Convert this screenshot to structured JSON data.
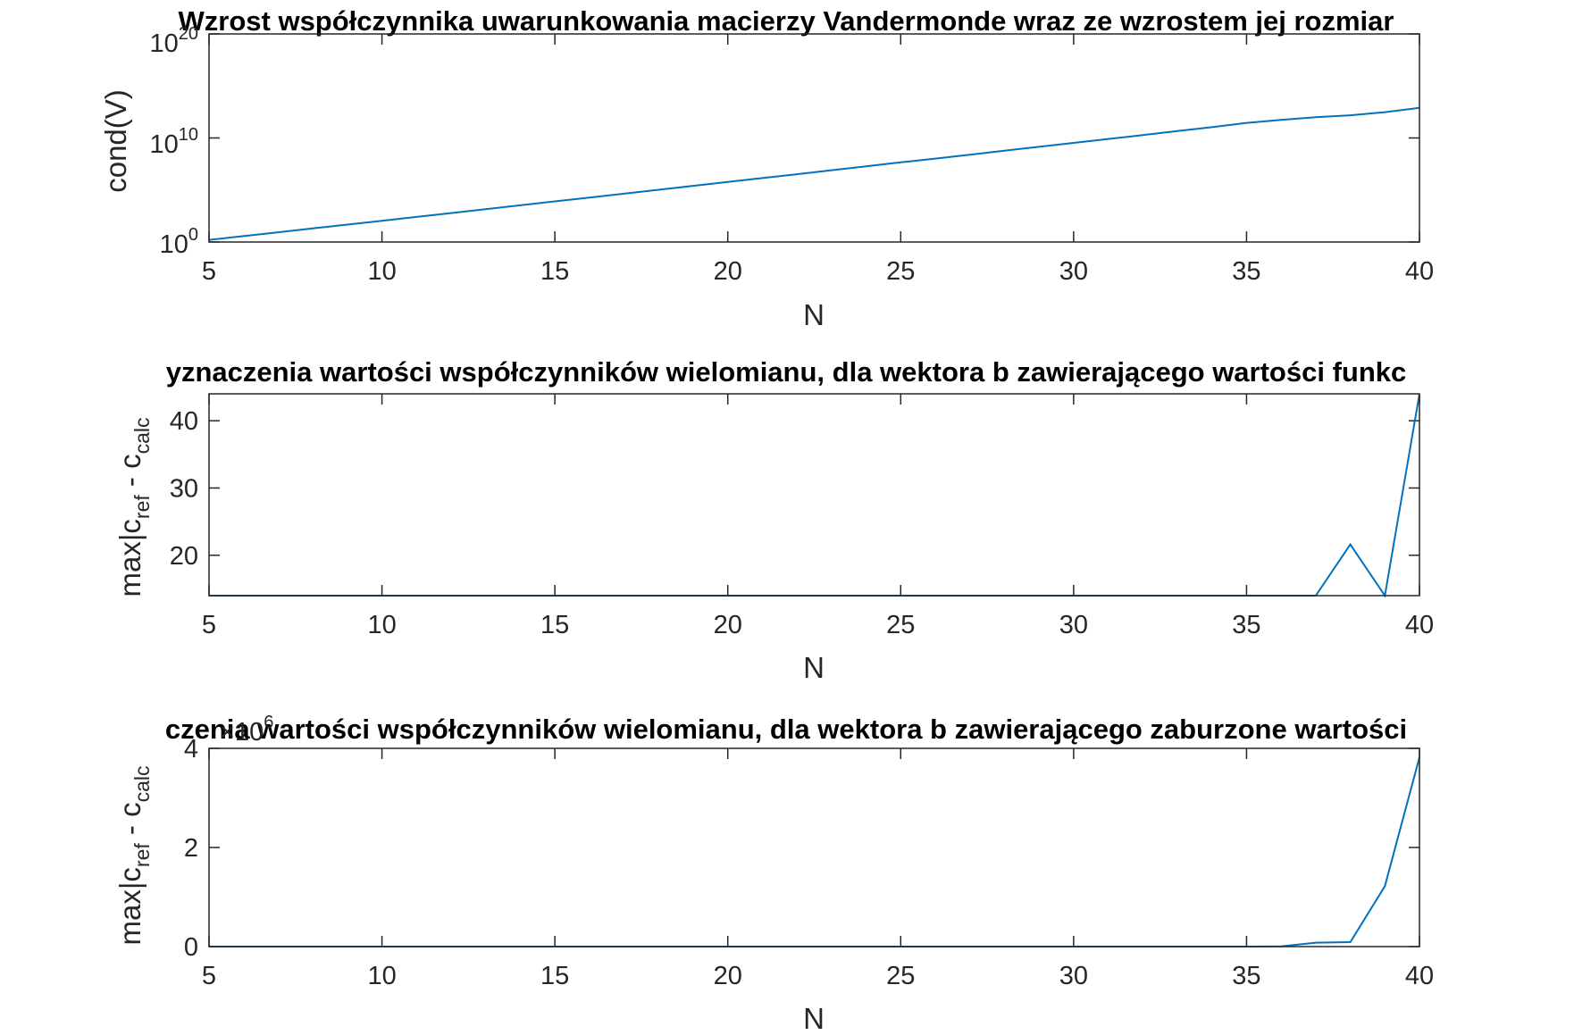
{
  "chart_data": [
    {
      "type": "line",
      "title": "Wzrost współczynnika uwarunkowania macierzy Vandermonde wraz ze wzrostem jej rozmiar",
      "xlabel": "N",
      "ylabel": "cond(V)",
      "yscale": "log",
      "xlim": [
        5,
        40
      ],
      "ylim": [
        1,
        1e+20
      ],
      "xticks": [
        "5",
        "10",
        "15",
        "20",
        "25",
        "30",
        "35",
        "40"
      ],
      "yticks": [
        {
          "base": "10",
          "exp": "0"
        },
        {
          "base": "10",
          "exp": "10"
        },
        {
          "base": "10",
          "exp": "20"
        }
      ],
      "color": "#0072bd",
      "x": [
        5,
        6,
        7,
        8,
        9,
        10,
        11,
        12,
        13,
        14,
        15,
        16,
        17,
        18,
        19,
        20,
        21,
        22,
        23,
        24,
        25,
        26,
        27,
        28,
        29,
        30,
        31,
        32,
        33,
        34,
        35,
        36,
        37,
        38,
        39,
        40
      ],
      "y": [
        1.6,
        3.7,
        8.7,
        20,
        47,
        110,
        260,
        610,
        1450,
        3400,
        8000,
        19000,
        44000,
        105000,
        250000,
        590000,
        1400000,
        3300000,
        7900000,
        19000000,
        45000000,
        105000000,
        250000000,
        600000000,
        1400000000,
        3400000000,
        8000000000,
        19000000000,
        46000000000,
        110000000000,
        280000000000,
        550000000000,
        1000000000000,
        1500000000000,
        3000000000000,
        8000000000000
      ]
    },
    {
      "type": "line",
      "title": "yznaczenia wartości współczynników wielomianu, dla wektora b zawierającego wartości funkc",
      "xlabel": "N",
      "ylabel": {
        "base": "max|c",
        "sub1": "ref",
        "mid": " - c",
        "sub2": "calc"
      },
      "xlim": [
        5,
        40
      ],
      "ylim": [
        14,
        44
      ],
      "xticks": [
        "5",
        "10",
        "15",
        "20",
        "25",
        "30",
        "35",
        "40"
      ],
      "yticks": [
        "20",
        "30",
        "40"
      ],
      "color": "#0072bd",
      "x": [
        5,
        6,
        7,
        8,
        9,
        10,
        11,
        12,
        13,
        14,
        15,
        16,
        17,
        18,
        19,
        20,
        21,
        22,
        23,
        24,
        25,
        26,
        27,
        28,
        29,
        30,
        31,
        32,
        33,
        34,
        35,
        36,
        37,
        38,
        39,
        40
      ],
      "y": [
        14,
        14,
        14,
        14,
        14,
        14,
        14,
        14,
        14,
        14,
        14,
        14,
        14,
        14,
        14,
        14,
        14,
        14,
        14,
        14,
        14,
        14,
        14,
        14,
        14,
        14,
        14,
        14,
        14,
        14,
        14,
        14,
        14,
        21.6,
        14,
        44
      ]
    },
    {
      "type": "line",
      "title": "czenia wartości współczynników wielomianu, dla wektora b zawierającego zaburzone wartości",
      "xlabel": "N",
      "ylabel": {
        "base": "max|c",
        "sub1": "ref",
        "mid": " - c",
        "sub2": "calc"
      },
      "multiplier": {
        "base": "×10",
        "exp": "6"
      },
      "xlim": [
        5,
        40
      ],
      "ylim": [
        0,
        4
      ],
      "xticks": [
        "5",
        "10",
        "15",
        "20",
        "25",
        "30",
        "35",
        "40"
      ],
      "yticks": [
        "0",
        "2",
        "4"
      ],
      "color": "#0072bd",
      "x": [
        5,
        6,
        7,
        8,
        9,
        10,
        11,
        12,
        13,
        14,
        15,
        16,
        17,
        18,
        19,
        20,
        21,
        22,
        23,
        24,
        25,
        26,
        27,
        28,
        29,
        30,
        31,
        32,
        33,
        34,
        35,
        36,
        37,
        38,
        39,
        40
      ],
      "y": [
        0,
        0,
        0,
        0,
        0,
        0,
        0,
        0,
        0,
        0,
        0,
        0,
        0,
        0,
        0,
        0,
        0,
        0,
        0,
        0,
        0,
        0,
        0,
        0,
        0,
        0,
        0,
        0,
        0,
        0,
        0,
        0.005,
        0.08,
        0.09,
        1.22,
        3.82
      ]
    }
  ]
}
